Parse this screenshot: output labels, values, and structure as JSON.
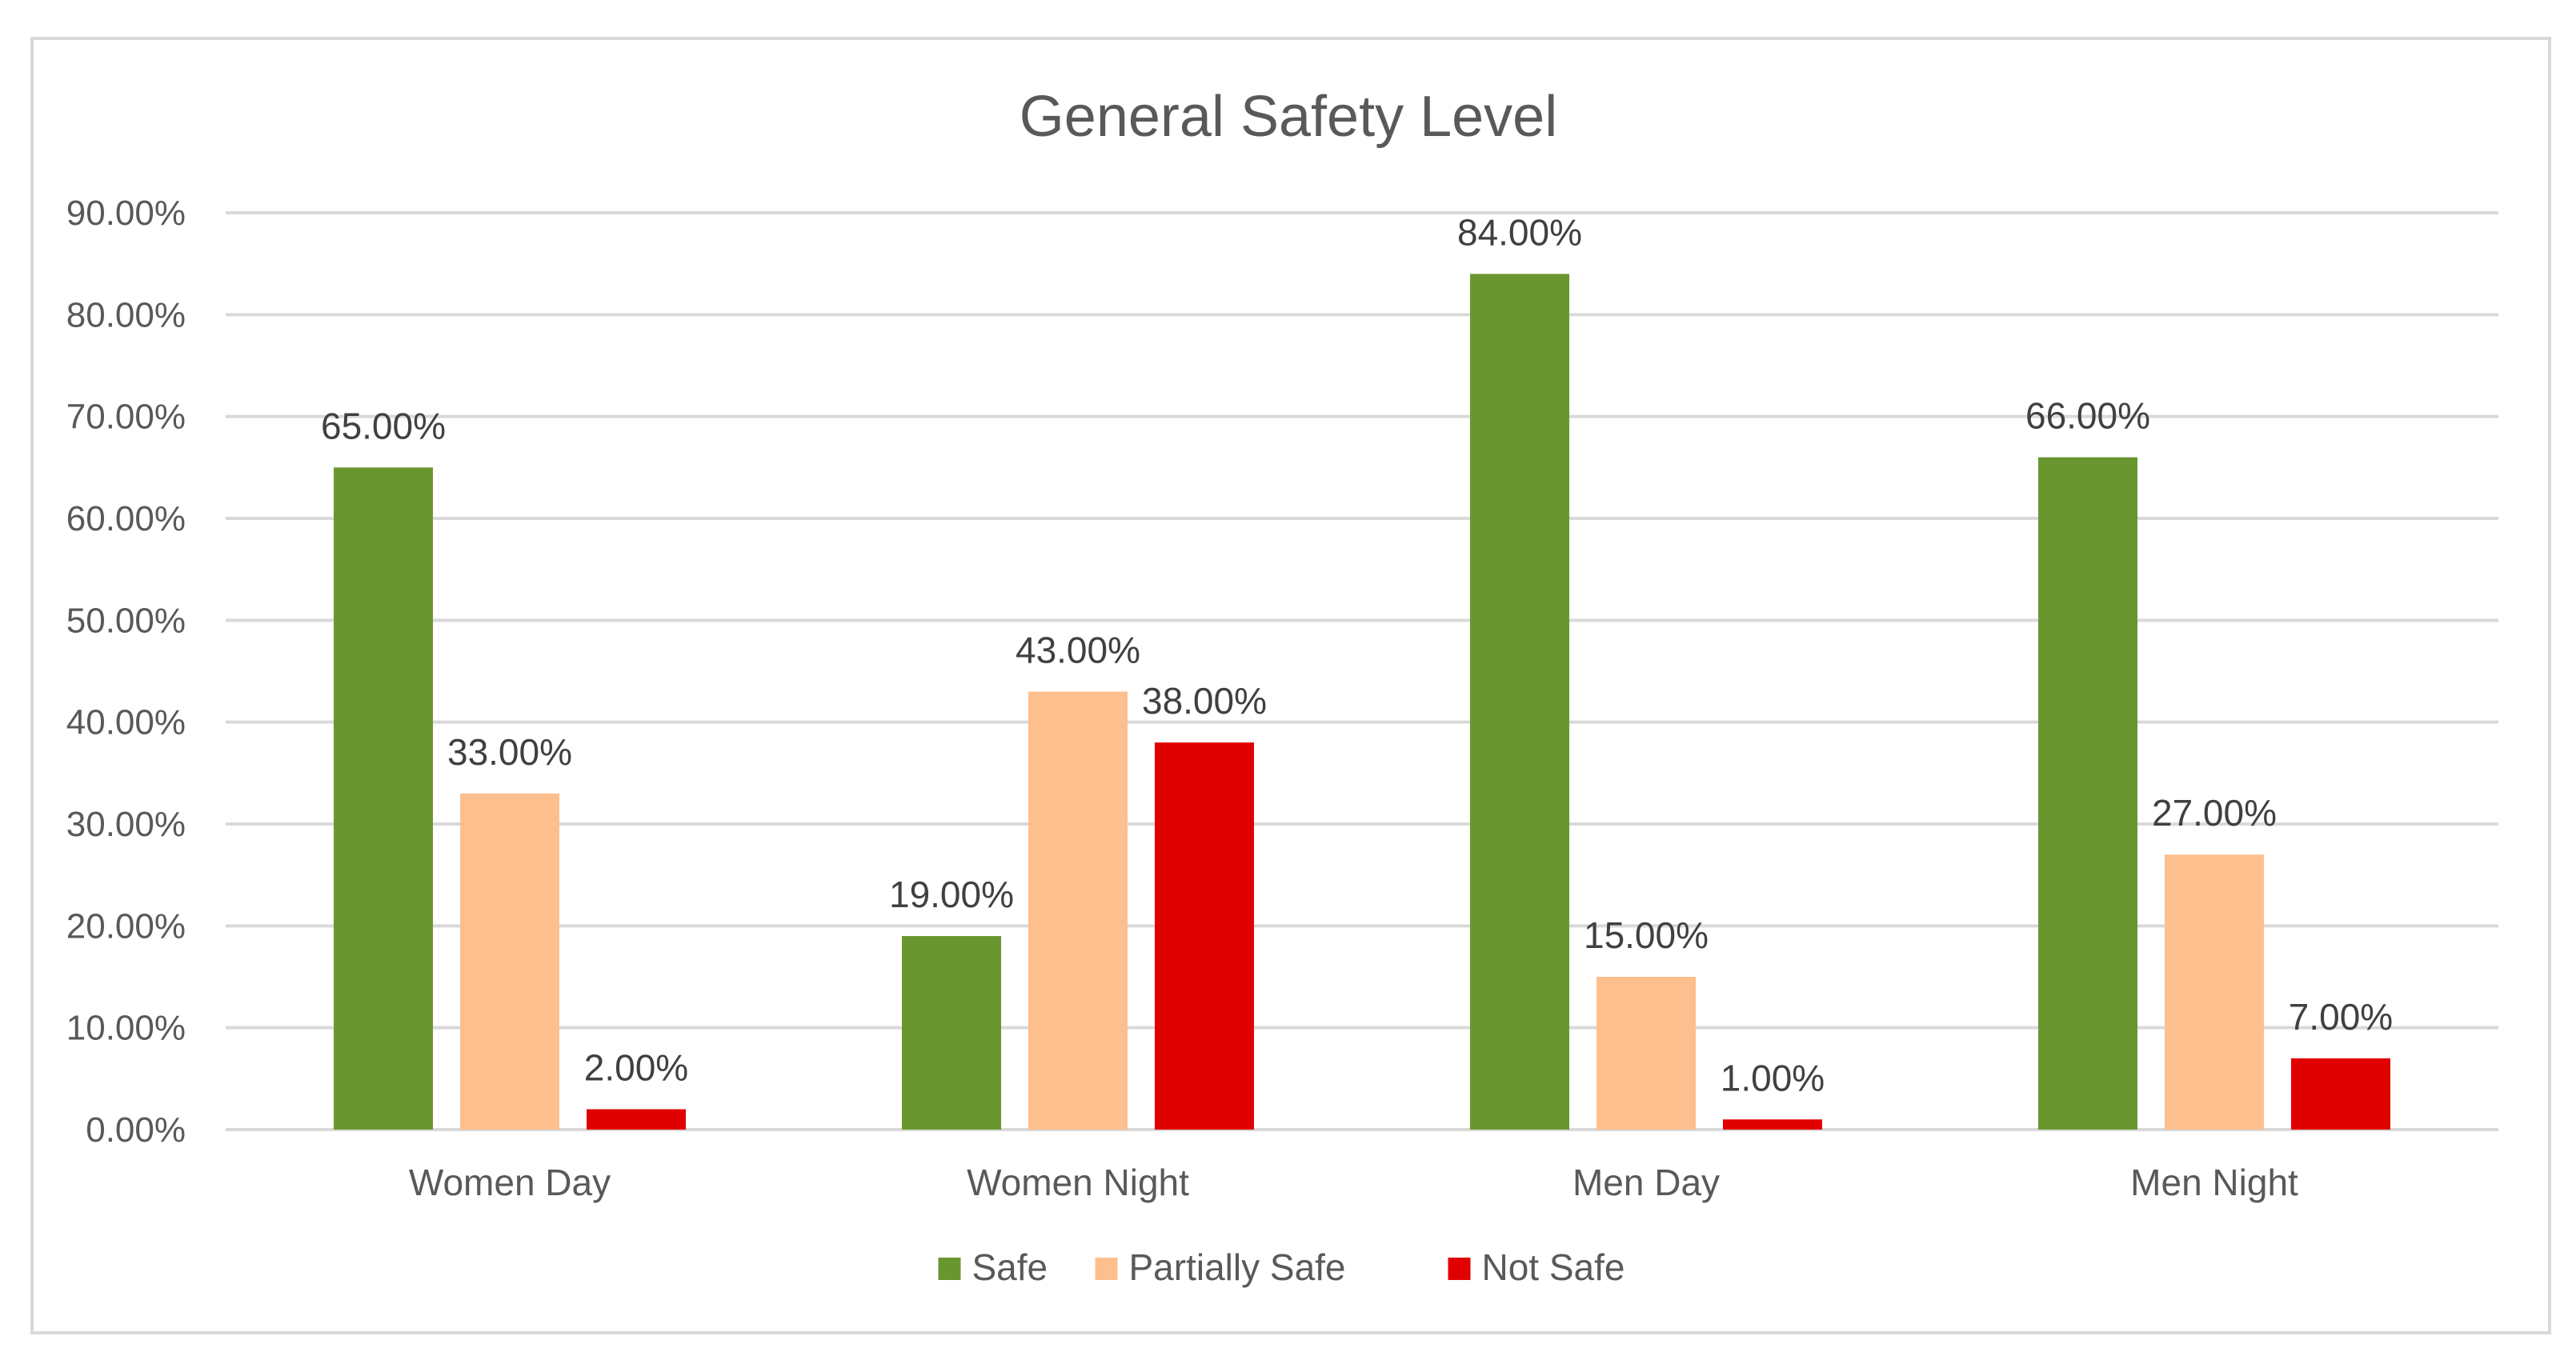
{
  "chart_data": {
    "type": "bar",
    "title": "General Safety Level",
    "xlabel": "",
    "ylabel": "",
    "ylim": [
      0,
      90
    ],
    "y_ticks": [
      "0.00%",
      "10.00%",
      "20.00%",
      "30.00%",
      "40.00%",
      "50.00%",
      "60.00%",
      "70.00%",
      "80.00%",
      "90.00%"
    ],
    "categories": [
      "Women Day",
      "Women Night",
      "Men Day",
      "Men Night"
    ],
    "series": [
      {
        "name": "Safe",
        "color": "#6a962f",
        "values": [
          65,
          19,
          84,
          66
        ],
        "labels": [
          "65.00%",
          "19.00%",
          "84.00%",
          "66.00%"
        ]
      },
      {
        "name": "Partially Safe",
        "color": "#fdbf8e",
        "values": [
          33,
          43,
          15,
          27
        ],
        "labels": [
          "33.00%",
          "43.00%",
          "15.00%",
          "27.00%"
        ]
      },
      {
        "name": "Not Safe",
        "color": "#e00000",
        "values": [
          2,
          38,
          1,
          7
        ],
        "labels": [
          "2.00%",
          "38.00%",
          "1.00%",
          "7.00%"
        ]
      }
    ],
    "grid": true,
    "legend_position": "bottom-center"
  }
}
